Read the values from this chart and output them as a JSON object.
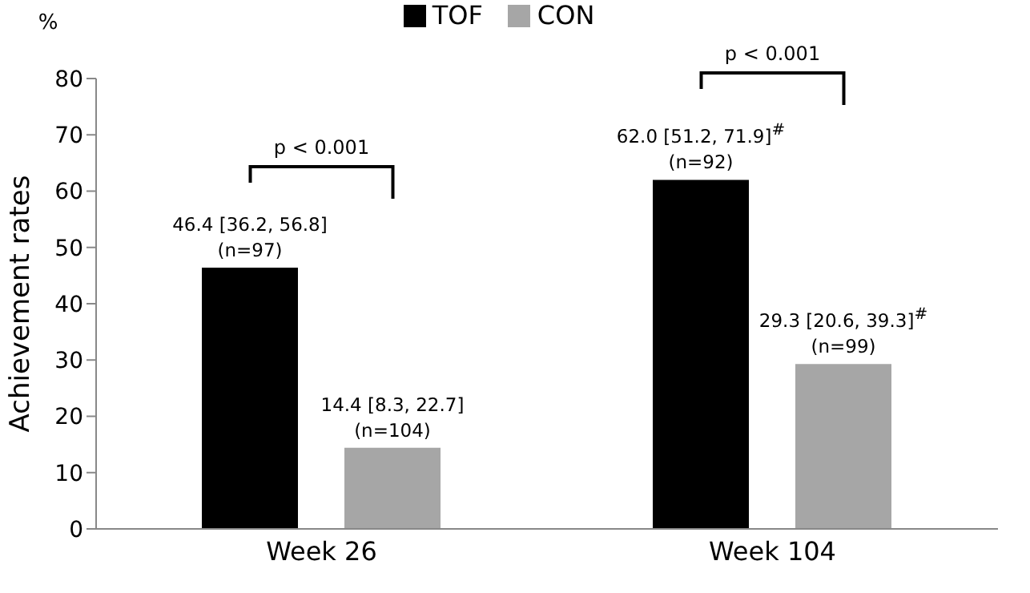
{
  "chart_data": {
    "type": "bar",
    "ylabel": "Achievement rates",
    "categories": [
      "Week 26",
      "Week 104"
    ],
    "series": [
      {
        "name": "TOF",
        "color": "#000000",
        "values": [
          46.4,
          62.0
        ],
        "value_labels": [
          "46.4 [36.2, 56.8]\n(n=97)",
          "62.0 [51.2, 71.9]$^{#}$\n(n=92)"
        ]
      },
      {
        "name": "CON",
        "color": "#a6a6a6",
        "values": [
          14.4,
          29.3
        ],
        "value_labels": [
          "14.4 [8.3, 22.7]\n(n=104)",
          "29.3 [20.6, 39.3]$^{#}$\n(n=99)"
        ]
      }
    ],
    "ylim": [
      0,
      80
    ],
    "yticks": [
      0,
      10,
      20,
      30,
      40,
      50,
      60,
      70,
      80
    ],
    "grid": false,
    "legend": "top",
    "annotations": [
      "%",
      "p < 0.001",
      "p < 0.001"
    ]
  }
}
